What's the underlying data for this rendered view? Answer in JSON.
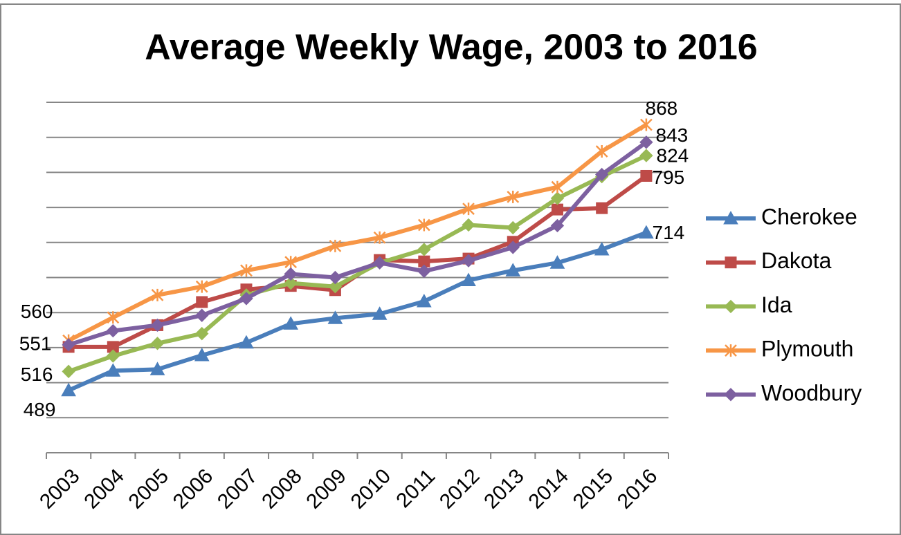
{
  "chart_data": {
    "type": "line",
    "title": "Average Weekly Wage, 2003 to 2016",
    "categories": [
      "2003",
      "2004",
      "2005",
      "2006",
      "2007",
      "2008",
      "2009",
      "2010",
      "2011",
      "2012",
      "2013",
      "2014",
      "2015",
      "2016"
    ],
    "series": [
      {
        "name": "Cherokee",
        "color": "#4a7ebb",
        "values": [
          489,
          517,
          519,
          539,
          557,
          584,
          592,
          598,
          616,
          646,
          660,
          671,
          690,
          714
        ]
      },
      {
        "name": "Dakota",
        "color": "#be4b48",
        "values": [
          551,
          551,
          582,
          615,
          633,
          638,
          632,
          675,
          673,
          677,
          701,
          747,
          749,
          795
        ]
      },
      {
        "name": "Ida",
        "color": "#98b954",
        "values": [
          516,
          538,
          556,
          570,
          625,
          642,
          637,
          671,
          690,
          725,
          721,
          763,
          794,
          824
        ]
      },
      {
        "name": "Plymouth",
        "color": "#f79646",
        "values": [
          560,
          593,
          625,
          637,
          660,
          672,
          695,
          707,
          725,
          748,
          765,
          779,
          830,
          868
        ]
      },
      {
        "name": "Woodbury",
        "color": "#7d60a0",
        "values": [
          554,
          574,
          582,
          596,
          620,
          655,
          650,
          671,
          659,
          674,
          693,
          724,
          797,
          843
        ]
      }
    ],
    "ylim": [
      400,
      900
    ],
    "yticks": [
      450,
      500,
      550,
      600,
      650,
      700,
      750,
      800,
      850,
      900
    ],
    "grid": true,
    "legend": "right"
  }
}
